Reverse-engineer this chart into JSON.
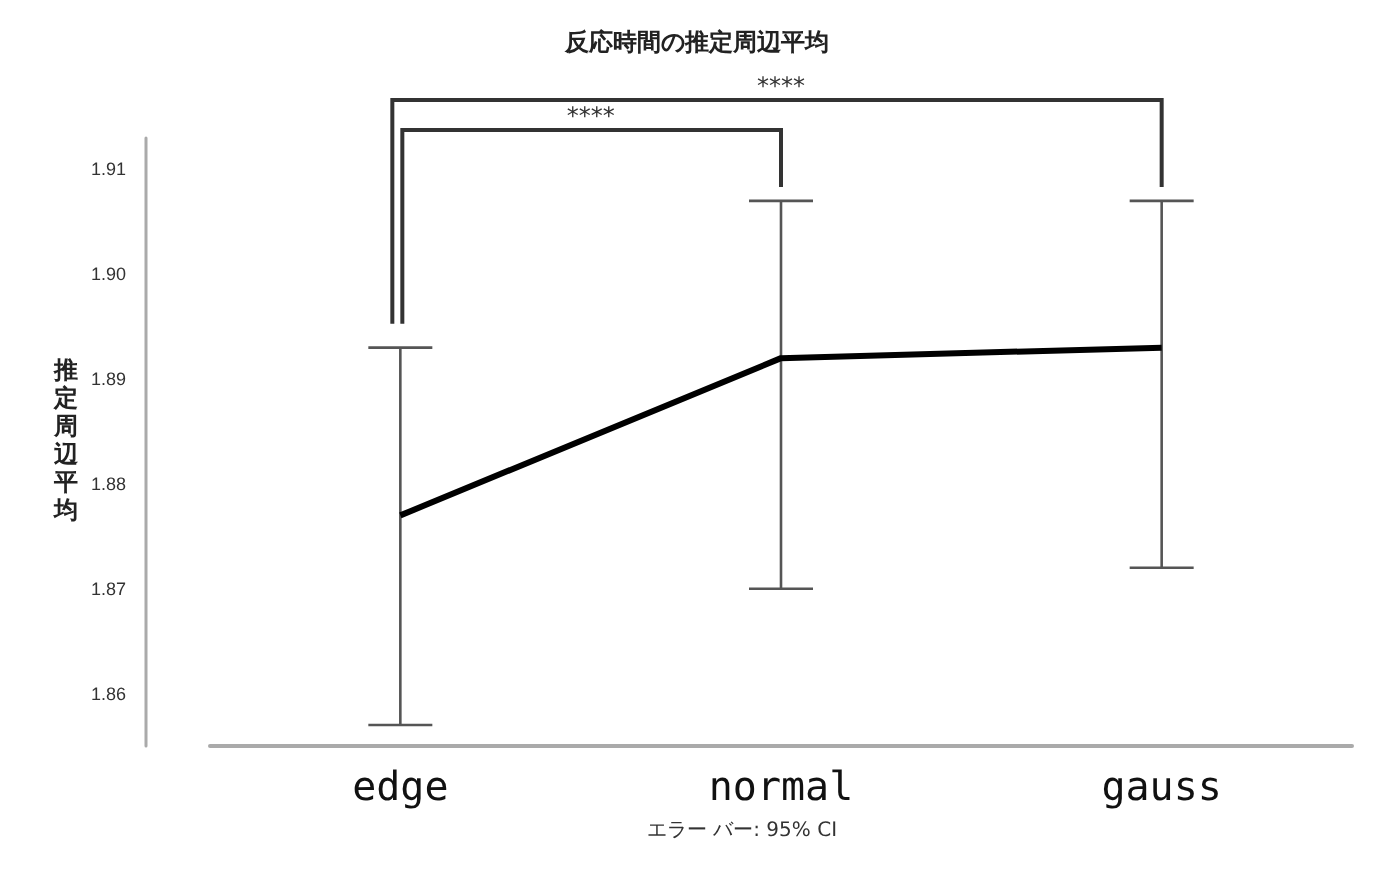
{
  "chart_data": {
    "type": "line",
    "title": "反応時間の推定周辺平均",
    "ylabel": "推定周辺平均",
    "categories": [
      "edge",
      "normal",
      "gauss"
    ],
    "series": [
      {
        "color": "#000000",
        "values": [
          1.877,
          1.892,
          1.893
        ],
        "errors": [
          [
            1.857,
            1.893
          ],
          [
            1.87,
            1.907
          ],
          [
            1.872,
            1.907
          ]
        ]
      }
    ],
    "ylim": [
      1.855,
      1.913
    ],
    "yticks": [
      {
        "value": 1.86,
        "label": "1.86"
      },
      {
        "value": 1.87,
        "label": "1.87"
      },
      {
        "value": 1.88,
        "label": "1.88"
      },
      {
        "value": 1.89,
        "label": "1.89"
      },
      {
        "value": 1.9,
        "label": "1.90"
      },
      {
        "value": 1.91,
        "label": "1.91"
      }
    ],
    "marker": "none",
    "line_style": "solid",
    "annotations": [
      "****",
      "****",
      "エラー バー: 95% CI"
    ]
  }
}
